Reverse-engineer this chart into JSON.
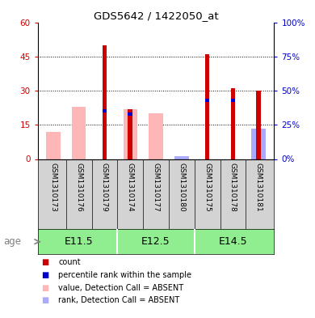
{
  "title": "GDS5642 / 1422050_at",
  "samples": [
    "GSM1310173",
    "GSM1310176",
    "GSM1310179",
    "GSM1310174",
    "GSM1310177",
    "GSM1310180",
    "GSM1310175",
    "GSM1310178",
    "GSM1310181"
  ],
  "group_labels": [
    "E11.5",
    "E12.5",
    "E14.5"
  ],
  "red_values": [
    0,
    0,
    50,
    22,
    0,
    0,
    46,
    31,
    30
  ],
  "pink_values": [
    12,
    23,
    0,
    22,
    20,
    0,
    0,
    0,
    0
  ],
  "blue_values_pct": [
    0,
    0,
    35,
    33,
    0,
    0,
    43,
    43,
    0
  ],
  "lightblue_values": [
    0,
    0,
    0,
    0,
    0,
    2,
    0,
    0,
    22
  ],
  "ylim_left": [
    0,
    60
  ],
  "ylim_right": [
    0,
    100
  ],
  "yticks_left": [
    0,
    15,
    30,
    45,
    60
  ],
  "ytick_labels_left": [
    "0",
    "15",
    "30",
    "45",
    "60"
  ],
  "yticks_right": [
    0,
    25,
    50,
    75,
    100
  ],
  "ytick_labels_right": [
    "0%",
    "25%",
    "50%",
    "75%",
    "100%"
  ],
  "color_red": "#CC0000",
  "color_pink": "#FFB6B6",
  "color_blue": "#0000CC",
  "color_lightblue": "#AAAAFF",
  "color_green": "#90EE90",
  "bg_label": "#D3D3D3",
  "legend_items": [
    [
      "#CC0000",
      "count"
    ],
    [
      "#0000CC",
      "percentile rank within the sample"
    ],
    [
      "#FFB6B6",
      "value, Detection Call = ABSENT"
    ],
    [
      "#AAAAFF",
      "rank, Detection Call = ABSENT"
    ]
  ]
}
